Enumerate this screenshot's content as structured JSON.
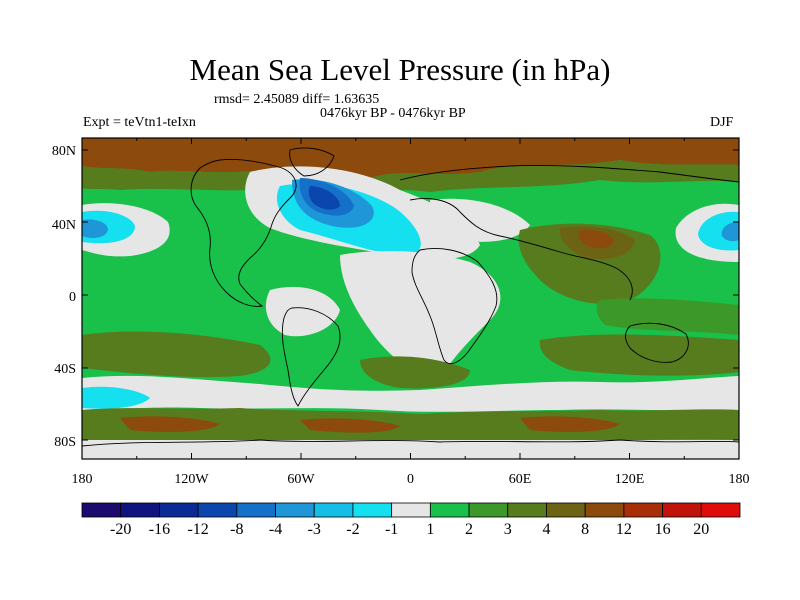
{
  "title": "Mean Sea Level Pressure (in hPa)",
  "stats": "rmsd= 2.45089 diff= 1.63635",
  "period": "0476kyr BP - 0476kyr BP",
  "experiment": "Expt = teVtn1-teIxn",
  "season": "DJF",
  "axes": {
    "lon_labels": [
      "180",
      "120W",
      "60W",
      "0",
      "60E",
      "120E",
      "180"
    ],
    "lat_labels": [
      "80N",
      "40N",
      "0",
      "40S",
      "80S"
    ]
  },
  "colorbar": {
    "levels": [
      "-20",
      "-16",
      "-12",
      "-8",
      "-4",
      "-3",
      "-2",
      "-1",
      "1",
      "2",
      "3",
      "4",
      "8",
      "12",
      "16",
      "20"
    ],
    "colors": [
      "#1c0a6e",
      "#10147e",
      "#0a2a96",
      "#0a46ae",
      "#1470c8",
      "#1e96d8",
      "#14bee6",
      "#14e0f0",
      "#e6e6e6",
      "#19c04a",
      "#3c9828",
      "#567c1e",
      "#6c6414",
      "#8c4a0c",
      "#a82e08",
      "#c0140a",
      "#e00c0c"
    ]
  },
  "palette": {
    "ocean_zero": "#e6e6e6",
    "green": "#19c04a",
    "mid_green": "#3c9828",
    "olive": "#567c1e",
    "dark_olive": "#6c6414",
    "brown": "#8c4a0c",
    "light_cyan": "#14e0f0",
    "cyan": "#14bee6",
    "sky": "#1e96d8",
    "blue": "#1470c8",
    "deep_blue": "#0a46ae",
    "coast": "#000000"
  }
}
